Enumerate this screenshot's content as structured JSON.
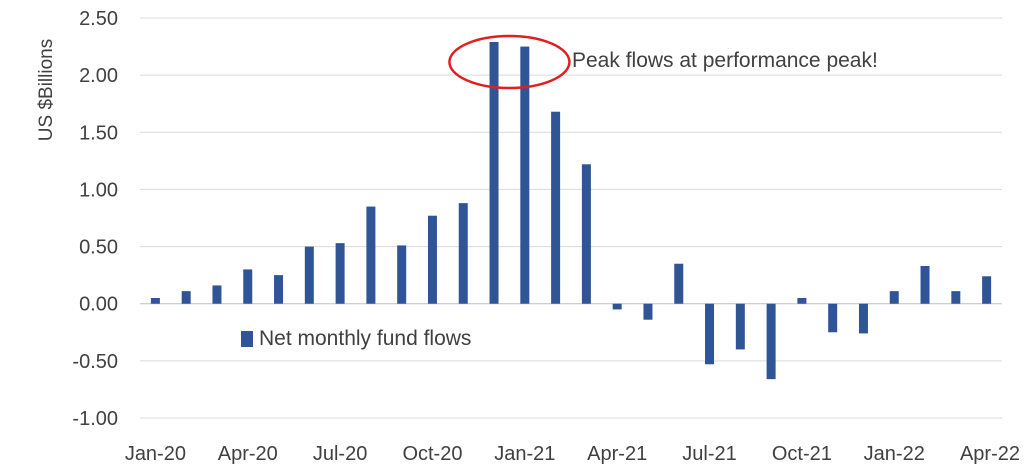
{
  "chart_data": {
    "type": "bar",
    "ylabel": "US $Billions",
    "ylim": [
      -1.0,
      2.5
    ],
    "yticks": [
      "2.50",
      "2.00",
      "1.50",
      "1.00",
      "0.50",
      "0.00",
      "-0.50",
      "-1.00"
    ],
    "xticks": [
      "Jan-20",
      "Apr-20",
      "Jul-20",
      "Oct-20",
      "Jan-21",
      "Apr-21",
      "Jul-21",
      "Oct-21",
      "Jan-22",
      "Apr-22"
    ],
    "categories": [
      "Jan-20",
      "Feb-20",
      "Mar-20",
      "Apr-20",
      "May-20",
      "Jun-20",
      "Jul-20",
      "Aug-20",
      "Sep-20",
      "Oct-20",
      "Nov-20",
      "Dec-20",
      "Jan-21",
      "Feb-21",
      "Mar-21",
      "Apr-21",
      "May-21",
      "Jun-21",
      "Jul-21",
      "Aug-21",
      "Sep-21",
      "Oct-21",
      "Nov-21",
      "Dec-21",
      "Jan-22",
      "Feb-22",
      "Mar-22",
      "Apr-22"
    ],
    "series": [
      {
        "name": "Net monthly fund flows",
        "values": [
          0.05,
          0.11,
          0.16,
          0.3,
          0.25,
          0.5,
          0.53,
          0.85,
          0.51,
          0.77,
          0.88,
          2.29,
          2.25,
          1.68,
          1.22,
          -0.05,
          -0.14,
          0.35,
          -0.53,
          -0.4,
          -0.66,
          0.05,
          -0.25,
          -0.26,
          0.11,
          0.33,
          0.11,
          0.24
        ]
      }
    ],
    "grid": true,
    "legend_position": "inside-lower-left",
    "annotation": {
      "text": "Peak flows at performance peak!",
      "target_categories": [
        "Dec-20",
        "Jan-21"
      ]
    },
    "colors": {
      "bar": "#2F5597",
      "grid": "#D9D9D9",
      "annotation_circle": "#E02020",
      "text": "#404040"
    }
  }
}
